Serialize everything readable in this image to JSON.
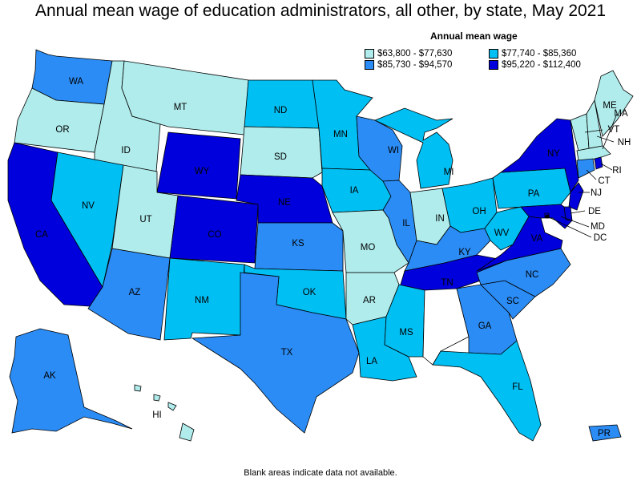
{
  "title": "Annual mean wage of education administrators, all other, by state, May 2021",
  "legend": {
    "title": "Annual mean wage",
    "items": [
      {
        "label": "$63,800 - $77,630",
        "color": "#b0ecec"
      },
      {
        "label": "$77,740 - $85,360",
        "color": "#00bff3"
      },
      {
        "label": "$85,730 - $94,570",
        "color": "#2b8cf5"
      },
      {
        "label": "$95,220 - $112,400",
        "color": "#0000dd"
      }
    ]
  },
  "footnote": "Blank areas indicate data not available.",
  "states": {
    "WA": {
      "label": "WA",
      "tier": 2
    },
    "OR": {
      "label": "OR",
      "tier": 0
    },
    "CA": {
      "label": "CA",
      "tier": 3
    },
    "ID": {
      "label": "ID",
      "tier": 0
    },
    "NV": {
      "label": "NV",
      "tier": 1
    },
    "MT": {
      "label": "MT",
      "tier": 0
    },
    "WY": {
      "label": "WY",
      "tier": 3
    },
    "UT": {
      "label": "UT",
      "tier": 0
    },
    "AZ": {
      "label": "AZ",
      "tier": 2
    },
    "CO": {
      "label": "CO",
      "tier": 3
    },
    "NM": {
      "label": "NM",
      "tier": 1
    },
    "ND": {
      "label": "ND",
      "tier": 1
    },
    "SD": {
      "label": "SD",
      "tier": 0
    },
    "NE": {
      "label": "NE",
      "tier": 3
    },
    "KS": {
      "label": "KS",
      "tier": 2
    },
    "OK": {
      "label": "OK",
      "tier": 1
    },
    "TX": {
      "label": "TX",
      "tier": 2
    },
    "MN": {
      "label": "MN",
      "tier": 1
    },
    "IA": {
      "label": "IA",
      "tier": 1
    },
    "MO": {
      "label": "MO",
      "tier": 0
    },
    "AR": {
      "label": "AR",
      "tier": 0
    },
    "LA": {
      "label": "LA",
      "tier": 1
    },
    "WI": {
      "label": "WI",
      "tier": 2
    },
    "IL": {
      "label": "IL",
      "tier": 2
    },
    "MI": {
      "label": "MI",
      "tier": 1
    },
    "IN": {
      "label": "IN",
      "tier": 0
    },
    "OH": {
      "label": "OH",
      "tier": 1
    },
    "KY": {
      "label": "KY",
      "tier": 2
    },
    "TN": {
      "label": "TN",
      "tier": 3
    },
    "MS": {
      "label": "MS",
      "tier": 1
    },
    "AL": {
      "label": "",
      "tier": -1
    },
    "GA": {
      "label": "GA",
      "tier": 2
    },
    "FL": {
      "label": "FL",
      "tier": 1
    },
    "SC": {
      "label": "SC",
      "tier": 2
    },
    "NC": {
      "label": "NC",
      "tier": 2
    },
    "VA": {
      "label": "VA",
      "tier": 3
    },
    "WV": {
      "label": "WV",
      "tier": 1
    },
    "PA": {
      "label": "PA",
      "tier": 1
    },
    "NY": {
      "label": "NY",
      "tier": 3
    },
    "ME": {
      "label": "ME",
      "tier": 0
    },
    "VT": {
      "label": "VT",
      "tier": 0
    },
    "NH": {
      "label": "NH",
      "tier": 0
    },
    "MA": {
      "label": "MA",
      "tier": 0
    },
    "RI": {
      "label": "RI",
      "tier": 3
    },
    "CT": {
      "label": "CT",
      "tier": 2
    },
    "NJ": {
      "label": "NJ",
      "tier": 3
    },
    "DE": {
      "label": "DE",
      "tier": 3
    },
    "MD": {
      "label": "MD",
      "tier": 3
    },
    "DC": {
      "label": "DC",
      "tier": 3
    },
    "AK": {
      "label": "AK",
      "tier": 2
    },
    "HI": {
      "label": "HI",
      "tier": 0
    },
    "PR": {
      "label": "PR",
      "tier": 2
    }
  }
}
